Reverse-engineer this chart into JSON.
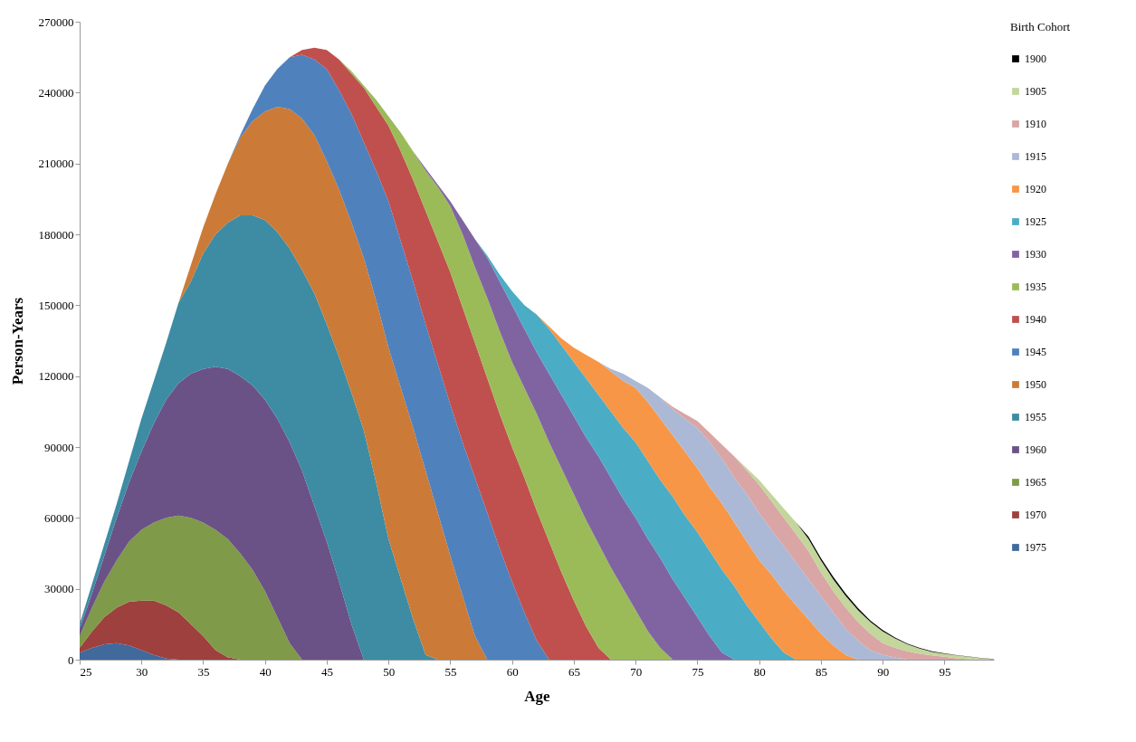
{
  "chart_data": {
    "type": "area",
    "stacked": true,
    "xlabel": "Age",
    "ylabel": "Person-Years",
    "legend_title": "Birth Cohort",
    "legend": "right",
    "xlim": [
      25,
      99
    ],
    "xticks": [
      25,
      30,
      35,
      40,
      45,
      50,
      55,
      60,
      65,
      70,
      75,
      80,
      85,
      90,
      95
    ],
    "ylim": [
      0,
      270000
    ],
    "yticks": [
      0,
      30000,
      60000,
      90000,
      120000,
      150000,
      180000,
      210000,
      240000,
      270000
    ],
    "x": [
      25,
      26,
      27,
      28,
      29,
      30,
      31,
      32,
      33,
      34,
      35,
      36,
      37,
      38,
      39,
      40,
      41,
      42,
      43,
      44,
      45,
      46,
      47,
      48,
      49,
      50,
      51,
      52,
      53,
      54,
      55,
      56,
      57,
      58,
      59,
      60,
      61,
      62,
      63,
      64,
      65,
      66,
      67,
      68,
      69,
      70,
      71,
      72,
      73,
      74,
      75,
      76,
      77,
      78,
      79,
      80,
      81,
      82,
      83,
      84,
      85,
      86,
      87,
      88,
      89,
      90,
      91,
      92,
      93,
      94,
      95,
      96,
      97,
      98,
      99
    ],
    "series": [
      {
        "name": "1975",
        "color": "#40699c",
        "values": [
          3000,
          5000,
          6500,
          7000,
          6000,
          4000,
          2000,
          500,
          0,
          0,
          0,
          0,
          0,
          0,
          0,
          0,
          0,
          0,
          0,
          0,
          0,
          0,
          0,
          0,
          0,
          0,
          0,
          0,
          0,
          0,
          0,
          0,
          0,
          0,
          0,
          0,
          0,
          0,
          0,
          0,
          0,
          0,
          0,
          0,
          0,
          0,
          0,
          0,
          0,
          0,
          0,
          0,
          0,
          0,
          0,
          0,
          0,
          0,
          0,
          0,
          0,
          0,
          0,
          0,
          0,
          0,
          0,
          0,
          0,
          0,
          0,
          0,
          0,
          0,
          0
        ]
      },
      {
        "name": "1970",
        "color": "#9e403e",
        "values": [
          2000,
          7000,
          11500,
          15000,
          18500,
          21000,
          23000,
          22500,
          20000,
          15000,
          10000,
          4000,
          1000,
          0,
          0,
          0,
          0,
          0,
          0,
          0,
          0,
          0,
          0,
          0,
          0,
          0,
          0,
          0,
          0,
          0,
          0,
          0,
          0,
          0,
          0,
          0,
          0,
          0,
          0,
          0,
          0,
          0,
          0,
          0,
          0,
          0,
          0,
          0,
          0,
          0,
          0,
          0,
          0,
          0,
          0,
          0,
          0,
          0,
          0,
          0,
          0,
          0,
          0,
          0,
          0,
          0,
          0,
          0,
          0,
          0,
          0,
          0,
          0,
          0,
          0
        ]
      },
      {
        "name": "1965",
        "color": "#7f9a48",
        "values": [
          5000,
          10000,
          15000,
          20000,
          25500,
          30000,
          33000,
          37000,
          41000,
          45000,
          48000,
          51000,
          50000,
          45000,
          38000,
          29000,
          18000,
          7000,
          0,
          0,
          0,
          0,
          0,
          0,
          0,
          0,
          0,
          0,
          0,
          0,
          0,
          0,
          0,
          0,
          0,
          0,
          0,
          0,
          0,
          0,
          0,
          0,
          0,
          0,
          0,
          0,
          0,
          0,
          0,
          0,
          0,
          0,
          0,
          0,
          0,
          0,
          0,
          0,
          0,
          0,
          0,
          0,
          0,
          0,
          0,
          0,
          0,
          0,
          0,
          0,
          0,
          0,
          0,
          0,
          0
        ]
      },
      {
        "name": "1960",
        "color": "#6a5286",
        "values": [
          3000,
          6000,
          11000,
          18000,
          25000,
          33000,
          42000,
          50000,
          56000,
          61000,
          65000,
          69000,
          72000,
          75000,
          78000,
          81000,
          84000,
          85000,
          80000,
          65000,
          50000,
          33000,
          15000,
          0,
          0,
          0,
          0,
          0,
          0,
          0,
          0,
          0,
          0,
          0,
          0,
          0,
          0,
          0,
          0,
          0,
          0,
          0,
          0,
          0,
          0,
          0,
          0,
          0,
          0,
          0,
          0,
          0,
          0,
          0,
          0,
          0,
          0,
          0,
          0,
          0,
          0,
          0,
          0,
          0,
          0,
          0,
          0,
          0,
          0,
          0,
          0,
          0,
          0,
          0,
          0
        ]
      },
      {
        "name": "1955",
        "color": "#3d8ca3",
        "values": [
          2000,
          4000,
          5000,
          6000,
          9000,
          14000,
          18000,
          24000,
          34000,
          39000,
          49000,
          56000,
          62000,
          68000,
          72000,
          76000,
          79000,
          82000,
          85000,
          90000,
          92000,
          95000,
          98000,
          97000,
          75000,
          51000,
          34000,
          17000,
          2000,
          0,
          0,
          0,
          0,
          0,
          0,
          0,
          0,
          0,
          0,
          0,
          0,
          0,
          0,
          0,
          0,
          0,
          0,
          0,
          0,
          0,
          0,
          0,
          0,
          0,
          0,
          0,
          0,
          0,
          0,
          0,
          0,
          0,
          0,
          0,
          0,
          0,
          0,
          0,
          0,
          0,
          0,
          0,
          0,
          0,
          0
        ]
      },
      {
        "name": "1950",
        "color": "#cb7b37",
        "values": [
          0,
          0,
          0,
          0,
          0,
          0,
          0,
          0,
          0,
          7000,
          11000,
          17000,
          25000,
          33000,
          40000,
          46000,
          53000,
          59000,
          64000,
          67000,
          69000,
          71000,
          72000,
          73000,
          77000,
          81000,
          81000,
          81000,
          78000,
          62000,
          44000,
          27000,
          10000,
          0,
          0,
          0,
          0,
          0,
          0,
          0,
          0,
          0,
          0,
          0,
          0,
          0,
          0,
          0,
          0,
          0,
          0,
          0,
          0,
          0,
          0,
          0,
          0,
          0,
          0,
          0,
          0,
          0,
          0,
          0,
          0,
          0,
          0,
          0,
          0,
          0,
          0,
          0,
          0,
          0,
          0
        ]
      },
      {
        "name": "1945",
        "color": "#4f81bd",
        "values": [
          0,
          0,
          0,
          0,
          0,
          0,
          0,
          0,
          0,
          0,
          0,
          0,
          0,
          1000,
          5000,
          11000,
          16000,
          22000,
          27000,
          32000,
          39000,
          42000,
          46000,
          49000,
          55000,
          62000,
          62000,
          62000,
          62000,
          63000,
          64000,
          65000,
          67000,
          62000,
          47000,
          33000,
          20000,
          8000,
          0,
          0,
          0,
          0,
          0,
          0,
          0,
          0,
          0,
          0,
          0,
          0,
          0,
          0,
          0,
          0,
          0,
          0,
          0,
          0,
          0,
          0,
          0,
          0,
          0,
          0,
          0,
          0,
          0,
          0,
          0,
          0,
          0,
          0,
          0,
          0,
          0
        ]
      },
      {
        "name": "1940",
        "color": "#c0504d",
        "values": [
          0,
          0,
          0,
          0,
          0,
          0,
          0,
          0,
          0,
          0,
          0,
          0,
          0,
          0,
          0,
          0,
          0,
          0,
          2000,
          5000,
          8000,
          13000,
          17000,
          23000,
          27000,
          32000,
          38000,
          43000,
          48000,
          52000,
          56000,
          57000,
          57000,
          57000,
          57000,
          57000,
          57000,
          55000,
          50000,
          37000,
          25000,
          14000,
          5000,
          0,
          0,
          0,
          0,
          0,
          0,
          0,
          0,
          0,
          0,
          0,
          0,
          0,
          0,
          0,
          0,
          0,
          0,
          0,
          0,
          0,
          0,
          0,
          0,
          0,
          0,
          0,
          0,
          0,
          0,
          0,
          0
        ]
      },
      {
        "name": "1935",
        "color": "#9bbb59",
        "values": [
          null,
          null,
          null,
          null,
          null,
          null,
          null,
          null,
          null,
          null,
          null,
          null,
          null,
          null,
          null,
          null,
          null,
          null,
          null,
          null,
          null,
          0,
          1000,
          1000,
          3000,
          4000,
          8000,
          12000,
          17000,
          23000,
          28000,
          31000,
          32000,
          34000,
          35000,
          36000,
          38000,
          41000,
          42000,
          44000,
          45000,
          45000,
          44000,
          39000,
          30000,
          21000,
          12000,
          5000,
          0,
          null,
          null,
          null,
          null,
          null,
          null,
          null,
          null,
          null,
          null,
          null,
          null,
          null,
          null,
          null,
          null,
          null,
          null,
          null,
          null,
          null,
          null,
          null,
          null,
          null,
          null
        ]
      },
      {
        "name": "1930",
        "color": "#8064a2",
        "values": [
          null,
          null,
          null,
          null,
          null,
          null,
          null,
          null,
          null,
          null,
          null,
          null,
          null,
          null,
          null,
          null,
          null,
          null,
          null,
          null,
          null,
          null,
          null,
          null,
          null,
          null,
          null,
          0,
          1000,
          1000,
          2000,
          6000,
          12000,
          17000,
          21000,
          24000,
          25000,
          26000,
          29000,
          31000,
          33000,
          35000,
          37000,
          38000,
          38000,
          39000,
          39000,
          38000,
          34000,
          26000,
          18000,
          10000,
          3000,
          0,
          null,
          null,
          null,
          null,
          null,
          null,
          null,
          null,
          null,
          null,
          null,
          null,
          null,
          null,
          null,
          null,
          null,
          null,
          null,
          null,
          null
        ]
      },
      {
        "name": "1925",
        "color": "#4bacc6",
        "values": [
          null,
          null,
          null,
          null,
          null,
          null,
          null,
          null,
          null,
          null,
          null,
          null,
          null,
          null,
          null,
          null,
          null,
          null,
          null,
          null,
          null,
          null,
          null,
          null,
          null,
          null,
          null,
          null,
          null,
          null,
          null,
          null,
          0,
          1000,
          3000,
          6000,
          10000,
          16000,
          19000,
          21000,
          23000,
          25000,
          26000,
          28000,
          30000,
          32000,
          33000,
          33000,
          35000,
          35000,
          36000,
          36000,
          35000,
          31000,
          23000,
          16000,
          9000,
          3000,
          0,
          null,
          null,
          null,
          null,
          null,
          null,
          null,
          null,
          null,
          null,
          null,
          null,
          null,
          null,
          null,
          null
        ]
      },
      {
        "name": "1920",
        "color": "#f79646",
        "values": [
          null,
          null,
          null,
          null,
          null,
          null,
          null,
          null,
          null,
          null,
          null,
          null,
          null,
          null,
          null,
          null,
          null,
          null,
          null,
          null,
          null,
          null,
          null,
          null,
          null,
          null,
          null,
          null,
          null,
          null,
          null,
          null,
          null,
          null,
          null,
          null,
          null,
          0,
          1000,
          3000,
          6000,
          10000,
          14000,
          17000,
          20000,
          23000,
          25000,
          26000,
          26000,
          27000,
          27000,
          27000,
          28000,
          27000,
          27000,
          26000,
          27000,
          26000,
          23000,
          17000,
          11000,
          6000,
          2000,
          0,
          null,
          null,
          null,
          null,
          null,
          null,
          null,
          null,
          null,
          null,
          null
        ]
      },
      {
        "name": "1915",
        "color": "#abb9d6",
        "values": [
          null,
          null,
          null,
          null,
          null,
          null,
          null,
          null,
          null,
          null,
          null,
          null,
          null,
          null,
          null,
          null,
          null,
          null,
          null,
          null,
          null,
          null,
          null,
          null,
          null,
          null,
          null,
          null,
          null,
          null,
          null,
          null,
          null,
          null,
          null,
          null,
          null,
          null,
          null,
          null,
          null,
          null,
          0,
          1000,
          3000,
          3000,
          6000,
          9000,
          11000,
          14000,
          17000,
          19000,
          19000,
          19000,
          20000,
          20000,
          19000,
          19000,
          18000,
          17000,
          16000,
          14000,
          11000,
          8000,
          4000,
          2000,
          1000,
          0,
          null,
          null,
          null,
          null,
          null,
          null,
          null
        ]
      },
      {
        "name": "1910",
        "color": "#d9a6a5",
        "values": [
          null,
          null,
          null,
          null,
          null,
          null,
          null,
          null,
          null,
          null,
          null,
          null,
          null,
          null,
          null,
          null,
          null,
          null,
          null,
          null,
          null,
          null,
          null,
          null,
          null,
          null,
          null,
          null,
          null,
          null,
          null,
          null,
          null,
          null,
          null,
          null,
          null,
          null,
          null,
          null,
          null,
          null,
          null,
          null,
          null,
          null,
          null,
          0,
          1000,
          2000,
          3000,
          4000,
          6000,
          9000,
          10000,
          12000,
          12000,
          12000,
          12000,
          12000,
          10000,
          9000,
          9000,
          8000,
          7000,
          5000,
          4000,
          3500,
          2500,
          1800,
          1200,
          600,
          200,
          0,
          null
        ]
      },
      {
        "name": "1905",
        "color": "#c3d69b",
        "values": [
          null,
          null,
          null,
          null,
          null,
          null,
          null,
          null,
          null,
          null,
          null,
          null,
          null,
          null,
          null,
          null,
          null,
          null,
          null,
          null,
          null,
          null,
          null,
          null,
          null,
          null,
          null,
          null,
          null,
          null,
          null,
          null,
          null,
          null,
          null,
          null,
          null,
          null,
          null,
          null,
          null,
          null,
          null,
          null,
          null,
          null,
          null,
          null,
          null,
          null,
          null,
          null,
          null,
          0,
          1000,
          2000,
          3000,
          4000,
          5000,
          5000,
          5000,
          5000,
          5000,
          5000,
          5000,
          5000,
          4000,
          3000,
          2200,
          1500,
          1300,
          1200,
          1000,
          600,
          200
        ]
      },
      {
        "name": "1900",
        "color": "#000000",
        "values": [
          null,
          null,
          null,
          null,
          null,
          null,
          null,
          null,
          null,
          null,
          null,
          null,
          null,
          null,
          null,
          null,
          null,
          null,
          null,
          null,
          null,
          null,
          null,
          null,
          null,
          null,
          null,
          null,
          null,
          null,
          null,
          null,
          null,
          null,
          null,
          null,
          null,
          null,
          null,
          null,
          null,
          null,
          null,
          null,
          null,
          null,
          null,
          null,
          null,
          null,
          null,
          null,
          null,
          null,
          null,
          null,
          null,
          null,
          0,
          1000,
          1000,
          1000,
          1000,
          800,
          600,
          500,
          400,
          300,
          300,
          200,
          200,
          100,
          100,
          100,
          100
        ]
      }
    ]
  }
}
